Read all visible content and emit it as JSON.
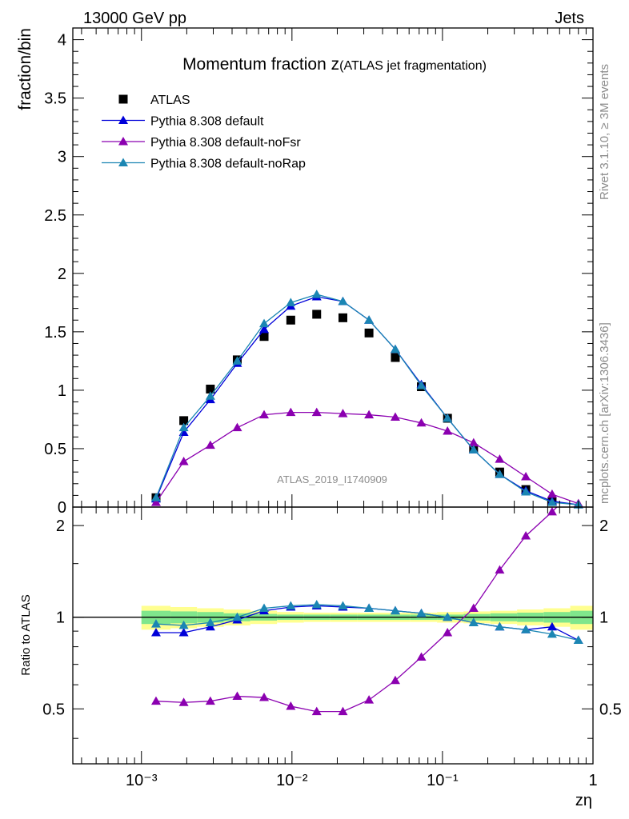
{
  "header": {
    "energy_label": "13000 GeV pp",
    "category_label": "Jets",
    "rivet_label": "Rivet 3.1.10, ≥ 3M events",
    "source_label": "mcplots.cern.ch [arXiv:1306.3436]",
    "analysis_label": "ATLAS_2019_I1740909"
  },
  "chart_data": [
    {
      "type": "scatter",
      "panel": "main",
      "title": "Momentum fraction z",
      "subtitle": "(ATLAS jet fragmentation)",
      "ylabel": "fraction/bin",
      "xlabel": "zη",
      "xscale": "log",
      "xlim": [
        0.00035,
        1.0
      ],
      "ylim": [
        0,
        4.1
      ],
      "yticks": [
        0,
        0.5,
        1,
        1.5,
        2,
        2.5,
        3,
        3.5,
        4
      ],
      "ytick_labels": [
        "0",
        "0.5",
        "1",
        "1.5",
        "2",
        "2.5",
        "3",
        "3.5",
        "4"
      ],
      "xticks": [
        0.001,
        0.01,
        0.1,
        1
      ],
      "xtick_labels": [
        "10⁻³",
        "10⁻²",
        "10⁻¹",
        "1"
      ],
      "legend_position": "top-left",
      "x": [
        0.00125,
        0.00191,
        0.00287,
        0.00433,
        0.00653,
        0.00982,
        0.0146,
        0.0218,
        0.0325,
        0.0486,
        0.0724,
        0.108,
        0.161,
        0.24,
        0.358,
        0.535,
        0.8
      ],
      "series": [
        {
          "name": "ATLAS",
          "color": "#000000",
          "marker": "square",
          "values": [
            0.08,
            0.74,
            1.01,
            1.26,
            1.46,
            1.6,
            1.65,
            1.62,
            1.49,
            1.28,
            1.03,
            0.76,
            0.5,
            0.3,
            0.15,
            0.05,
            null
          ]
        },
        {
          "name": "Pythia 8.308 default",
          "color": "#0000d9",
          "marker": "triangle",
          "values": [
            0.07,
            0.64,
            0.92,
            1.23,
            1.52,
            1.72,
            1.8,
            1.76,
            1.6,
            1.35,
            1.05,
            0.76,
            0.49,
            0.28,
            0.14,
            0.05,
            0.02
          ]
        },
        {
          "name": "Pythia 8.308 default-noFsr",
          "color": "#8b00b0",
          "marker": "triangle",
          "values": [
            0.04,
            0.39,
            0.53,
            0.68,
            0.79,
            0.81,
            0.81,
            0.8,
            0.79,
            0.77,
            0.72,
            0.65,
            0.55,
            0.41,
            0.26,
            0.11,
            0.03
          ]
        },
        {
          "name": "Pythia 8.308 default-noRap",
          "color": "#1b86b3",
          "marker": "triangle",
          "values": [
            0.08,
            0.68,
            0.95,
            1.25,
            1.57,
            1.75,
            1.82,
            1.76,
            1.6,
            1.35,
            1.04,
            0.76,
            0.49,
            0.28,
            0.13,
            0.04,
            0.02
          ]
        }
      ]
    },
    {
      "type": "line",
      "panel": "ratio",
      "ylabel": "Ratio to ATLAS",
      "xscale": "log",
      "xlim": [
        0.00035,
        1.0
      ],
      "yscale": "log",
      "ylim": [
        0.33,
        2.3
      ],
      "yticks": [
        0.5,
        1,
        2
      ],
      "ytick_labels": [
        "0.5",
        "1",
        "2"
      ],
      "reference_line": 1,
      "x": [
        0.00125,
        0.00191,
        0.00287,
        0.00433,
        0.00653,
        0.00982,
        0.0146,
        0.0218,
        0.0325,
        0.0486,
        0.0724,
        0.108,
        0.161,
        0.24,
        0.358,
        0.535,
        0.8
      ],
      "bin_edges": [
        0.001,
        0.00156,
        0.00234,
        0.00352,
        0.00529,
        0.00796,
        0.012,
        0.018,
        0.0271,
        0.0407,
        0.0612,
        0.092,
        0.138,
        0.208,
        0.313,
        0.47,
        0.706,
        1.0
      ],
      "uncertainty_bands": {
        "stat_color": "#80e68c",
        "total_color": "#ffff90",
        "stat_halfwidth": [
          0.05,
          0.045,
          0.04,
          0.03,
          0.025,
          0.02,
          0.02,
          0.02,
          0.02,
          0.02,
          0.02,
          0.02,
          0.025,
          0.03,
          0.035,
          0.04,
          0.05
        ],
        "total_halfwidth": [
          0.09,
          0.08,
          0.07,
          0.06,
          0.05,
          0.04,
          0.035,
          0.035,
          0.035,
          0.035,
          0.035,
          0.04,
          0.045,
          0.05,
          0.06,
          0.07,
          0.09
        ]
      },
      "series": [
        {
          "name": "Pythia 8.308 default",
          "color": "#0000d9",
          "values": [
            0.89,
            0.89,
            0.93,
            0.98,
            1.05,
            1.08,
            1.09,
            1.08,
            1.07,
            1.05,
            1.03,
            1.0,
            0.96,
            0.93,
            0.91,
            0.93,
            0.84
          ]
        },
        {
          "name": "Pythia 8.308 default-noFsr",
          "color": "#8b00b0",
          "values": [
            0.53,
            0.525,
            0.53,
            0.55,
            0.545,
            0.51,
            0.49,
            0.49,
            0.535,
            0.62,
            0.74,
            0.89,
            1.07,
            1.43,
            1.85,
            2.22,
            null
          ]
        },
        {
          "name": "Pythia 8.308 default-noRap",
          "color": "#1b86b3",
          "values": [
            0.95,
            0.94,
            0.96,
            1.0,
            1.07,
            1.09,
            1.1,
            1.09,
            1.07,
            1.05,
            1.03,
            1.0,
            0.96,
            0.93,
            0.91,
            0.88,
            0.84
          ]
        }
      ]
    }
  ]
}
